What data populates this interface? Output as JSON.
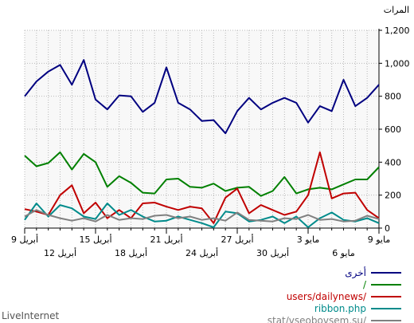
{
  "chart_data": {
    "type": "line",
    "ylabel": "المرات",
    "ylim": [
      0,
      1200
    ],
    "yticks": [
      "0",
      "200",
      "400",
      "600",
      "800",
      "1,000",
      "1,200"
    ],
    "ytick_values": [
      0,
      200,
      400,
      600,
      800,
      1000,
      1200
    ],
    "grid": true,
    "legend_position": "bottom-right",
    "xticks_row1": [
      {
        "label": "9 مايو",
        "index": 0
      },
      {
        "label": "3 مايو",
        "index": 6
      },
      {
        "label": "27 أبريل",
        "index": 12
      },
      {
        "label": "21 أبريل",
        "index": 18
      },
      {
        "label": "15 أبريل",
        "index": 24
      },
      {
        "label": "9 أبريل",
        "index": 30
      }
    ],
    "xticks_row2": [
      {
        "label": "6 مايو",
        "index": 3
      },
      {
        "label": "30 أبريل",
        "index": 9
      },
      {
        "label": "24 أبريل",
        "index": 15
      },
      {
        "label": "18 أبريل",
        "index": 21
      },
      {
        "label": "12 أبريل",
        "index": 27
      }
    ],
    "series": [
      {
        "name": "أخرى",
        "color": "#000080",
        "values": [
          870,
          790,
          740,
          900,
          710,
          740,
          640,
          760,
          790,
          760,
          720,
          790,
          710,
          575,
          655,
          650,
          720,
          760,
          975,
          760,
          705,
          800,
          805,
          720,
          780,
          1020,
          870,
          990,
          950,
          890,
          800
        ]
      },
      {
        "name": "/",
        "color": "#008000",
        "values": [
          370,
          295,
          295,
          265,
          235,
          245,
          235,
          210,
          310,
          225,
          195,
          250,
          245,
          225,
          270,
          245,
          250,
          300,
          295,
          210,
          215,
          275,
          315,
          250,
          400,
          450,
          355,
          460,
          395,
          375,
          440
        ]
      },
      {
        "name": "users/dailynews/",
        "color": "#c00000",
        "values": [
          60,
          110,
          215,
          210,
          180,
          460,
          200,
          100,
          80,
          110,
          140,
          90,
          240,
          185,
          30,
          120,
          130,
          110,
          130,
          155,
          150,
          60,
          110,
          60,
          155,
          90,
          260,
          200,
          80,
          100,
          115
        ]
      },
      {
        "name": "ribbon.php",
        "color": "#008b8b",
        "values": [
          30,
          60,
          40,
          50,
          95,
          60,
          5,
          70,
          30,
          70,
          50,
          40,
          90,
          100,
          5,
          30,
          50,
          70,
          45,
          40,
          70,
          110,
          80,
          150,
          55,
          70,
          120,
          140,
          70,
          150,
          50
        ]
      },
      {
        "name": "stat/vseobovsem.su/",
        "color": "#808080",
        "values": [
          55,
          75,
          45,
          40,
          55,
          50,
          80,
          55,
          60,
          40,
          45,
          50,
          95,
          45,
          60,
          50,
          70,
          60,
          80,
          75,
          55,
          60,
          50,
          80,
          40,
          60,
          45,
          60,
          80,
          110,
          70
        ]
      }
    ]
  },
  "footer": {
    "credit": "LiveInternet"
  }
}
